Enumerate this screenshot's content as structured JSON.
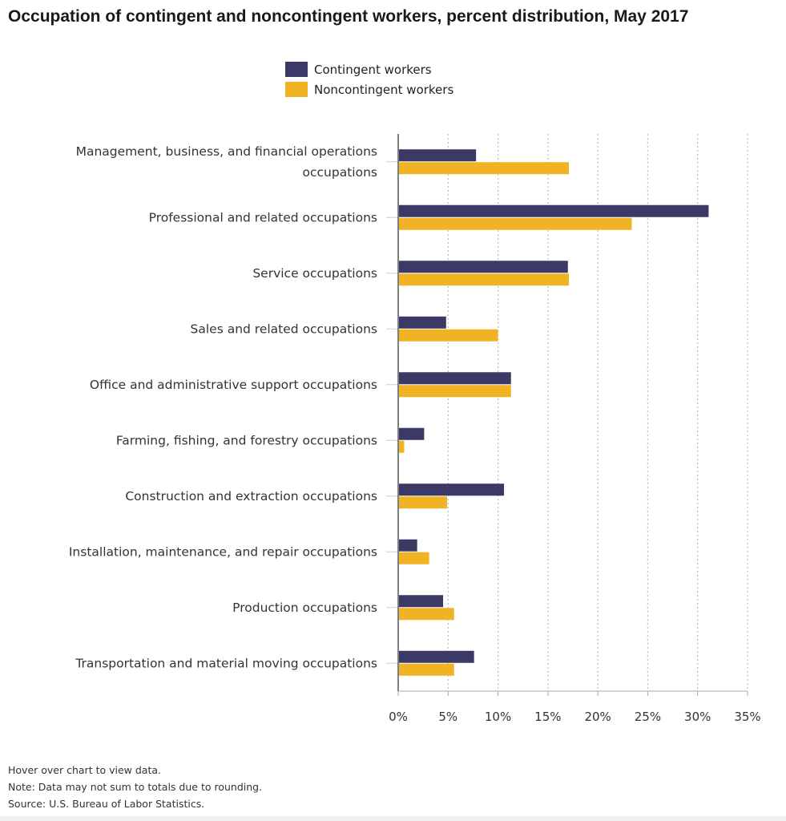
{
  "chart_data": {
    "type": "bar",
    "orientation": "horizontal",
    "title": "Occupation of contingent and noncontingent workers, percent distribution, May 2017",
    "categories": [
      [
        "Management, business, and financial operations",
        "occupations"
      ],
      [
        "Professional and related occupations"
      ],
      [
        "Service occupations"
      ],
      [
        "Sales and related occupations"
      ],
      [
        "Office and administrative support occupations"
      ],
      [
        "Farming, fishing, and forestry occupations"
      ],
      [
        "Construction and extraction occupations"
      ],
      [
        "Installation, maintenance, and repair occupations"
      ],
      [
        "Production occupations"
      ],
      [
        "Transportation and material moving occupations"
      ]
    ],
    "series": [
      {
        "name": "Contingent workers",
        "color": "#3b3a66",
        "values": [
          7.8,
          31.1,
          17.0,
          4.8,
          11.3,
          2.6,
          10.6,
          1.9,
          4.5,
          7.6
        ]
      },
      {
        "name": "Noncontingent workers",
        "color": "#f0b323",
        "values": [
          17.1,
          23.4,
          17.1,
          10.0,
          11.3,
          0.6,
          4.9,
          3.1,
          5.6,
          5.6
        ]
      }
    ],
    "xlim": [
      0,
      35
    ],
    "xticks": [
      "0%",
      "5%",
      "10%",
      "15%",
      "20%",
      "25%",
      "30%",
      "35%"
    ],
    "xtick_values": [
      0,
      5,
      10,
      15,
      20,
      25,
      30,
      35
    ],
    "grid": "vertical dotted",
    "legend_position": "top-center"
  },
  "notes": {
    "hover": "Hover over chart to view data.",
    "note": "Note: Data may not sum to totals due to rounding.",
    "source": "Source: U.S. Bureau of Labor Statistics."
  }
}
